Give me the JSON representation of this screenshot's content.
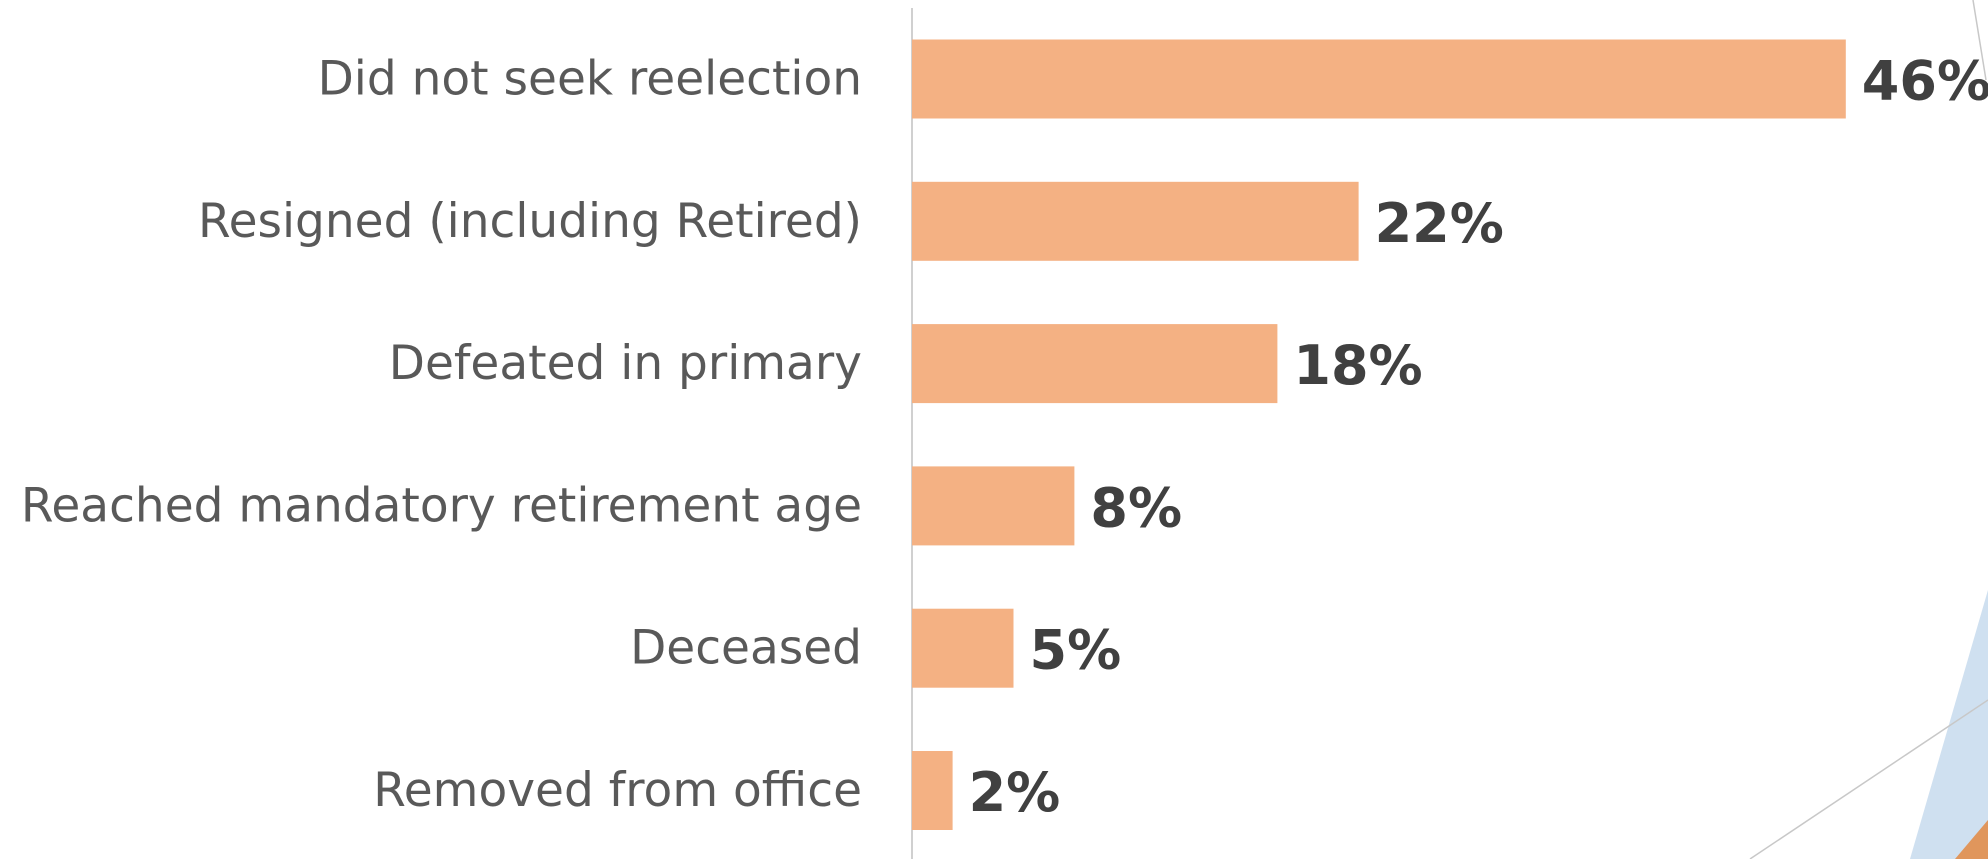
{
  "chart_data": {
    "type": "bar",
    "orientation": "horizontal",
    "categories": [
      "Did not seek reelection",
      "Resigned (including Retired)",
      "Defeated in primary",
      "Reached mandatory retirement age",
      "Deceased",
      "Removed from office"
    ],
    "values": [
      46,
      22,
      18,
      8,
      5,
      2
    ],
    "value_labels": [
      "46%",
      "22%",
      "18%",
      "8%",
      "5%",
      "2%"
    ],
    "color": "#f4b183"
  }
}
